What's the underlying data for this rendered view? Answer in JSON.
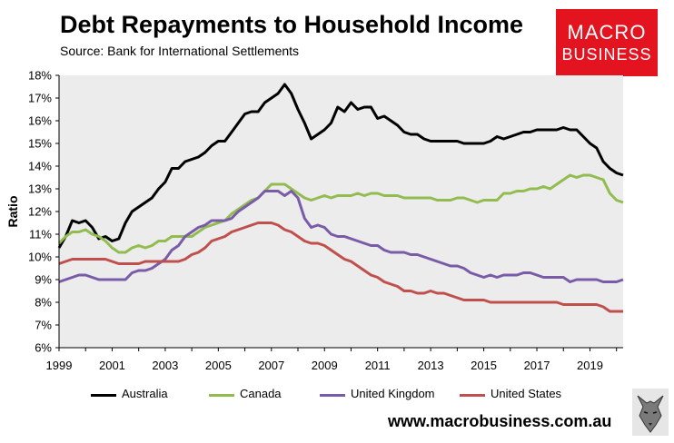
{
  "header": {
    "title": "Debt Repayments to Household Income",
    "subtitle": "Source: Bank for International Settlements"
  },
  "logo": {
    "line1": "MACRO",
    "line2": "BUSINESS",
    "color": "#e3141f"
  },
  "website": "www.macrobusiness.com.au",
  "wolf_icon": "wolf-head-icon",
  "chart_data": {
    "type": "line",
    "ylabel": "Ratio",
    "xlabel": "",
    "xlim": [
      1999.0,
      2020.25
    ],
    "ylim": [
      6,
      18
    ],
    "y_ticks": [
      6,
      7,
      8,
      9,
      10,
      11,
      12,
      13,
      14,
      15,
      16,
      17,
      18
    ],
    "y_tick_labels": [
      "6%",
      "7%",
      "8%",
      "9%",
      "10%",
      "11%",
      "12%",
      "13%",
      "14%",
      "15%",
      "16%",
      "17%",
      "18%"
    ],
    "x_ticks": [
      1999,
      2001,
      2003,
      2005,
      2007,
      2009,
      2011,
      2013,
      2015,
      2017,
      2019
    ],
    "x_tick_labels": [
      "1999",
      "2001",
      "2003",
      "2005",
      "2007",
      "2009",
      "2011",
      "2013",
      "2015",
      "2017",
      "2019"
    ],
    "grid": false,
    "plot_background": "#ececec",
    "legend_position": "bottom",
    "series": [
      {
        "name": "Australia",
        "color": "#000000",
        "x": [
          1999.0,
          1999.25,
          1999.5,
          1999.75,
          2000.0,
          2000.25,
          2000.5,
          2000.75,
          2001.0,
          2001.25,
          2001.5,
          2001.75,
          2002.0,
          2002.25,
          2002.5,
          2002.75,
          2003.0,
          2003.25,
          2003.5,
          2003.75,
          2004.0,
          2004.25,
          2004.5,
          2004.75,
          2005.0,
          2005.25,
          2005.5,
          2005.75,
          2006.0,
          2006.25,
          2006.5,
          2006.75,
          2007.0,
          2007.25,
          2007.5,
          2007.75,
          2008.0,
          2008.25,
          2008.5,
          2008.75,
          2009.0,
          2009.25,
          2009.5,
          2009.75,
          2010.0,
          2010.25,
          2010.5,
          2010.75,
          2011.0,
          2011.25,
          2011.5,
          2011.75,
          2012.0,
          2012.25,
          2012.5,
          2012.75,
          2013.0,
          2013.25,
          2013.5,
          2013.75,
          2014.0,
          2014.25,
          2014.5,
          2014.75,
          2015.0,
          2015.25,
          2015.5,
          2015.75,
          2016.0,
          2016.25,
          2016.5,
          2016.75,
          2017.0,
          2017.25,
          2017.5,
          2017.75,
          2018.0,
          2018.25,
          2018.5,
          2018.75,
          2019.0,
          2019.25,
          2019.5,
          2019.75,
          2020.0,
          2020.25
        ],
        "values": [
          10.4,
          10.9,
          11.6,
          11.5,
          11.6,
          11.3,
          10.8,
          10.9,
          10.7,
          10.8,
          11.5,
          12.0,
          12.2,
          12.4,
          12.6,
          13.0,
          13.3,
          13.9,
          13.9,
          14.2,
          14.3,
          14.4,
          14.6,
          14.9,
          15.1,
          15.1,
          15.5,
          15.9,
          16.3,
          16.4,
          16.4,
          16.8,
          17.0,
          17.2,
          17.6,
          17.2,
          16.5,
          15.9,
          15.2,
          15.4,
          15.6,
          15.9,
          16.6,
          16.4,
          16.8,
          16.5,
          16.6,
          16.6,
          16.1,
          16.2,
          16.0,
          15.8,
          15.5,
          15.4,
          15.4,
          15.2,
          15.1,
          15.1,
          15.1,
          15.1,
          15.1,
          15.0,
          15.0,
          15.0,
          15.0,
          15.1,
          15.3,
          15.2,
          15.3,
          15.4,
          15.5,
          15.5,
          15.6,
          15.6,
          15.6,
          15.6,
          15.7,
          15.6,
          15.6,
          15.3,
          15.0,
          14.8,
          14.2,
          13.9,
          13.7,
          13.6
        ]
      },
      {
        "name": "Canada",
        "color": "#92bc4f",
        "x": [
          1999.0,
          1999.25,
          1999.5,
          1999.75,
          2000.0,
          2000.25,
          2000.5,
          2000.75,
          2001.0,
          2001.25,
          2001.5,
          2001.75,
          2002.0,
          2002.25,
          2002.5,
          2002.75,
          2003.0,
          2003.25,
          2003.5,
          2003.75,
          2004.0,
          2004.25,
          2004.5,
          2004.75,
          2005.0,
          2005.25,
          2005.5,
          2005.75,
          2006.0,
          2006.25,
          2006.5,
          2006.75,
          2007.0,
          2007.25,
          2007.5,
          2007.75,
          2008.0,
          2008.25,
          2008.5,
          2008.75,
          2009.0,
          2009.25,
          2009.5,
          2009.75,
          2010.0,
          2010.25,
          2010.5,
          2010.75,
          2011.0,
          2011.25,
          2011.5,
          2011.75,
          2012.0,
          2012.25,
          2012.5,
          2012.75,
          2013.0,
          2013.25,
          2013.5,
          2013.75,
          2014.0,
          2014.25,
          2014.5,
          2014.75,
          2015.0,
          2015.25,
          2015.5,
          2015.75,
          2016.0,
          2016.25,
          2016.5,
          2016.75,
          2017.0,
          2017.25,
          2017.5,
          2017.75,
          2018.0,
          2018.25,
          2018.5,
          2018.75,
          2019.0,
          2019.25,
          2019.5,
          2019.75,
          2020.0,
          2020.25
        ],
        "values": [
          10.6,
          10.9,
          11.1,
          11.1,
          11.2,
          11.0,
          10.9,
          10.7,
          10.4,
          10.2,
          10.2,
          10.4,
          10.5,
          10.4,
          10.5,
          10.7,
          10.7,
          10.9,
          10.9,
          10.9,
          10.9,
          11.1,
          11.3,
          11.4,
          11.5,
          11.6,
          11.9,
          12.1,
          12.3,
          12.5,
          12.6,
          12.9,
          13.2,
          13.2,
          13.2,
          13.0,
          12.8,
          12.6,
          12.5,
          12.6,
          12.7,
          12.6,
          12.7,
          12.7,
          12.7,
          12.8,
          12.7,
          12.8,
          12.8,
          12.7,
          12.7,
          12.7,
          12.6,
          12.6,
          12.6,
          12.6,
          12.6,
          12.5,
          12.5,
          12.5,
          12.6,
          12.6,
          12.5,
          12.4,
          12.5,
          12.5,
          12.5,
          12.8,
          12.8,
          12.9,
          12.9,
          13.0,
          13.0,
          13.1,
          13.0,
          13.2,
          13.4,
          13.6,
          13.5,
          13.6,
          13.6,
          13.5,
          13.4,
          12.8,
          12.5,
          12.4
        ]
      },
      {
        "name": "United Kingdom",
        "color": "#7a5ba7",
        "x": [
          1999.0,
          1999.25,
          1999.5,
          1999.75,
          2000.0,
          2000.25,
          2000.5,
          2000.75,
          2001.0,
          2001.25,
          2001.5,
          2001.75,
          2002.0,
          2002.25,
          2002.5,
          2002.75,
          2003.0,
          2003.25,
          2003.5,
          2003.75,
          2004.0,
          2004.25,
          2004.5,
          2004.75,
          2005.0,
          2005.25,
          2005.5,
          2005.75,
          2006.0,
          2006.25,
          2006.5,
          2006.75,
          2007.0,
          2007.25,
          2007.5,
          2007.75,
          2008.0,
          2008.25,
          2008.5,
          2008.75,
          2009.0,
          2009.25,
          2009.5,
          2009.75,
          2010.0,
          2010.25,
          2010.5,
          2010.75,
          2011.0,
          2011.25,
          2011.5,
          2011.75,
          2012.0,
          2012.25,
          2012.5,
          2012.75,
          2013.0,
          2013.25,
          2013.5,
          2013.75,
          2014.0,
          2014.25,
          2014.5,
          2014.75,
          2015.0,
          2015.25,
          2015.5,
          2015.75,
          2016.0,
          2016.25,
          2016.5,
          2016.75,
          2017.0,
          2017.25,
          2017.5,
          2017.75,
          2018.0,
          2018.25,
          2018.5,
          2018.75,
          2019.0,
          2019.25,
          2019.5,
          2019.75,
          2020.0,
          2020.25
        ],
        "values": [
          8.9,
          9.0,
          9.1,
          9.2,
          9.2,
          9.1,
          9.0,
          9.0,
          9.0,
          9.0,
          9.0,
          9.3,
          9.4,
          9.4,
          9.5,
          9.7,
          9.9,
          10.3,
          10.5,
          10.9,
          11.1,
          11.3,
          11.4,
          11.6,
          11.6,
          11.6,
          11.7,
          12.0,
          12.2,
          12.4,
          12.6,
          12.9,
          12.9,
          12.9,
          12.7,
          12.9,
          12.6,
          11.7,
          11.3,
          11.4,
          11.3,
          11.0,
          10.9,
          10.9,
          10.8,
          10.7,
          10.6,
          10.5,
          10.5,
          10.3,
          10.2,
          10.2,
          10.2,
          10.1,
          10.1,
          10.0,
          9.9,
          9.8,
          9.7,
          9.6,
          9.6,
          9.5,
          9.3,
          9.2,
          9.1,
          9.2,
          9.1,
          9.2,
          9.2,
          9.2,
          9.3,
          9.3,
          9.2,
          9.1,
          9.1,
          9.1,
          9.1,
          8.9,
          9.0,
          9.0,
          9.0,
          9.0,
          8.9,
          8.9,
          8.9,
          9.0
        ]
      },
      {
        "name": "United States",
        "color": "#c0504d",
        "x": [
          1999.0,
          1999.25,
          1999.5,
          1999.75,
          2000.0,
          2000.25,
          2000.5,
          2000.75,
          2001.0,
          2001.25,
          2001.5,
          2001.75,
          2002.0,
          2002.25,
          2002.5,
          2002.75,
          2003.0,
          2003.25,
          2003.5,
          2003.75,
          2004.0,
          2004.25,
          2004.5,
          2004.75,
          2005.0,
          2005.25,
          2005.5,
          2005.75,
          2006.0,
          2006.25,
          2006.5,
          2006.75,
          2007.0,
          2007.25,
          2007.5,
          2007.75,
          2008.0,
          2008.25,
          2008.5,
          2008.75,
          2009.0,
          2009.25,
          2009.5,
          2009.75,
          2010.0,
          2010.25,
          2010.5,
          2010.75,
          2011.0,
          2011.25,
          2011.5,
          2011.75,
          2012.0,
          2012.25,
          2012.5,
          2012.75,
          2013.0,
          2013.25,
          2013.5,
          2013.75,
          2014.0,
          2014.25,
          2014.5,
          2014.75,
          2015.0,
          2015.25,
          2015.5,
          2015.75,
          2016.0,
          2016.25,
          2016.5,
          2016.75,
          2017.0,
          2017.25,
          2017.5,
          2017.75,
          2018.0,
          2018.25,
          2018.5,
          2018.75,
          2019.0,
          2019.25,
          2019.5,
          2019.75,
          2020.0,
          2020.25
        ],
        "values": [
          9.7,
          9.8,
          9.9,
          9.9,
          9.9,
          9.9,
          9.9,
          9.9,
          9.8,
          9.7,
          9.7,
          9.7,
          9.7,
          9.8,
          9.8,
          9.8,
          9.8,
          9.8,
          9.8,
          9.9,
          10.1,
          10.2,
          10.4,
          10.7,
          10.8,
          10.9,
          11.1,
          11.2,
          11.3,
          11.4,
          11.5,
          11.5,
          11.5,
          11.4,
          11.2,
          11.1,
          10.9,
          10.7,
          10.6,
          10.6,
          10.5,
          10.3,
          10.1,
          9.9,
          9.8,
          9.6,
          9.4,
          9.2,
          9.1,
          8.9,
          8.8,
          8.7,
          8.5,
          8.5,
          8.4,
          8.4,
          8.5,
          8.4,
          8.4,
          8.3,
          8.2,
          8.1,
          8.1,
          8.1,
          8.1,
          8.0,
          8.0,
          8.0,
          8.0,
          8.0,
          8.0,
          8.0,
          8.0,
          8.0,
          8.0,
          8.0,
          7.9,
          7.9,
          7.9,
          7.9,
          7.9,
          7.9,
          7.8,
          7.6,
          7.6,
          7.6
        ]
      }
    ]
  }
}
